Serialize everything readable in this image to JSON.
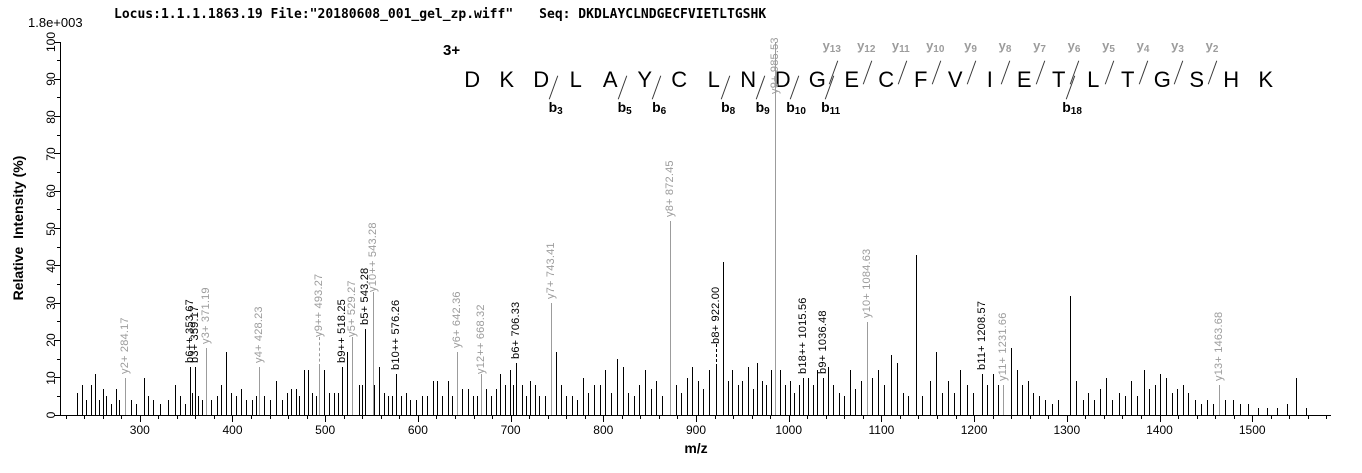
{
  "header": {
    "locus_file": "Locus:1.1.1.1863.19 File:\"20180608_001_gel_zp.wiff\"",
    "seq": "Seq: DKDLAYCLNDGECFVIETLTGSHK",
    "max_intensity": "1.8e+003"
  },
  "sequence": {
    "charge_label": "3+",
    "residues": [
      "D",
      "K",
      "D",
      "L",
      "A",
      "Y",
      "C",
      "L",
      "N",
      "D",
      "G",
      "E",
      "C",
      "F",
      "V",
      "I",
      "E",
      "T",
      "L",
      "T",
      "G",
      "S",
      "H",
      "K"
    ],
    "cuts": [
      {
        "after": 3,
        "b": "b3"
      },
      {
        "after": 5,
        "b": "b5"
      },
      {
        "after": 6,
        "b": "b6"
      },
      {
        "after": 8,
        "b": "b8"
      },
      {
        "after": 9,
        "b": "b9"
      },
      {
        "after": 10,
        "b": "b10"
      },
      {
        "after": 11,
        "b": "b11",
        "y": "y13"
      },
      {
        "after": 12,
        "y": "y12"
      },
      {
        "after": 13,
        "y": "y11"
      },
      {
        "after": 14,
        "y": "y10"
      },
      {
        "after": 15,
        "y": "y9"
      },
      {
        "after": 16,
        "y": "y8"
      },
      {
        "after": 17,
        "y": "y7"
      },
      {
        "after": 18,
        "b": "b18",
        "y": "y6"
      },
      {
        "after": 19,
        "y": "y5"
      },
      {
        "after": 20,
        "y": "y4"
      },
      {
        "after": 21,
        "y": "y3"
      },
      {
        "after": 22,
        "y": "y2"
      }
    ]
  },
  "colors": {
    "y_ion": "#9c9c9c",
    "b_ion": "#000000",
    "axis": "#000000",
    "background": "#ffffff"
  },
  "chart_data": {
    "type": "bar",
    "variant": "centroid MS/MS stick spectrum",
    "title": "",
    "xlabel": "m/z",
    "ylabel": "Relative  Intensity (%)",
    "x_range": [
      215,
      1585
    ],
    "ylim": [
      0,
      100
    ],
    "x_major_ticks": [
      300,
      400,
      500,
      600,
      700,
      800,
      900,
      1000,
      1100,
      1200,
      1300,
      1400,
      1500
    ],
    "x_minor_tick_step": 20,
    "y_major_tick_step": 10,
    "y_minor_tick_step": 5,
    "grid": false,
    "annotated_peaks": [
      {
        "label": "y2+ 284.17",
        "mz": 284.17,
        "intensity": 10,
        "ion": "y",
        "label_y": 11
      },
      {
        "label": "b6++ 353.67",
        "mz": 353.67,
        "intensity": 13,
        "ion": "b",
        "label_y": 14
      },
      {
        "label": "b3+ 359.17",
        "mz": 359.17,
        "intensity": 13,
        "ion": "b",
        "label_y": 14
      },
      {
        "label": "y3+ 371.19",
        "mz": 371.19,
        "intensity": 18,
        "ion": "y",
        "label_y": 19
      },
      {
        "label": "y4+ 428.23",
        "mz": 428.23,
        "intensity": 13,
        "ion": "y",
        "label_y": 14
      },
      {
        "label": "y9++ 493.27",
        "mz": 493.27,
        "intensity": 13,
        "ion": "y",
        "label_y": 21,
        "leader": "dashed"
      },
      {
        "label": "b9++ 518.25",
        "mz": 518.25,
        "intensity": 13,
        "ion": "b",
        "label_y": 14
      },
      {
        "label": "y5+ 529.27",
        "mz": 529.27,
        "intensity": 11,
        "ion": "y",
        "label_y": 21,
        "leader": "solid"
      },
      {
        "label": "b5+ 543.28",
        "mz": 543.28,
        "intensity": 23,
        "ion": "b",
        "label_y": 24
      },
      {
        "label": "y10++ 543.28",
        "mz": 543.28,
        "intensity": 16,
        "ion": "y",
        "label_y": 33,
        "leader": "solid",
        "dx": 8
      },
      {
        "label": "b10++ 576.26",
        "mz": 576.26,
        "intensity": 11,
        "ion": "b",
        "label_y": 12
      },
      {
        "label": "y6+ 642.36",
        "mz": 642.36,
        "intensity": 17,
        "ion": "y",
        "label_y": 18
      },
      {
        "label": "y12++ 668.32",
        "mz": 668.32,
        "intensity": 9,
        "ion": "y",
        "label_y": 11,
        "leader": "solid"
      },
      {
        "label": "b6+ 706.33",
        "mz": 706.33,
        "intensity": 14,
        "ion": "b",
        "label_y": 15
      },
      {
        "label": "y7+ 743.41",
        "mz": 743.41,
        "intensity": 30,
        "ion": "y",
        "label_y": 31
      },
      {
        "label": "y8+ 872.45",
        "mz": 872.45,
        "intensity": 52,
        "ion": "y",
        "label_y": 53
      },
      {
        "label": "b8+ 922.00",
        "mz": 922.0,
        "intensity": 13,
        "ion": "b",
        "label_y": 19,
        "leader": "dashed"
      },
      {
        "label": "y9+ 985.53",
        "mz": 985.53,
        "intensity": 100,
        "ion": "y",
        "label_y": 86
      },
      {
        "label": "b18++ 1015.56",
        "mz": 1015.56,
        "intensity": 10,
        "ion": "b",
        "label_y": 11
      },
      {
        "label": "b9+ 1036.48",
        "mz": 1036.48,
        "intensity": 10,
        "ion": "b",
        "label_y": 11
      },
      {
        "label": "y10+ 1084.63",
        "mz": 1084.63,
        "intensity": 25,
        "ion": "y",
        "label_y": 26
      },
      {
        "label": "b11+ 1208.57",
        "mz": 1208.57,
        "intensity": 11,
        "ion": "b",
        "label_y": 12
      },
      {
        "label": "y11+ 1231.66",
        "mz": 1231.66,
        "intensity": 8,
        "ion": "y",
        "label_y": 9
      },
      {
        "label": "y13+ 1463.68",
        "mz": 1463.68,
        "intensity": 8,
        "ion": "y",
        "label_y": 9
      }
    ],
    "background_peaks": [
      [
        232,
        6
      ],
      [
        238,
        8
      ],
      [
        242,
        4
      ],
      [
        247,
        8
      ],
      [
        252,
        11
      ],
      [
        256,
        4
      ],
      [
        260,
        7
      ],
      [
        264,
        5
      ],
      [
        269,
        3
      ],
      [
        274,
        7
      ],
      [
        278,
        4
      ],
      [
        290,
        4
      ],
      [
        296,
        3
      ],
      [
        304,
        10
      ],
      [
        309,
        5
      ],
      [
        314,
        4
      ],
      [
        322,
        3
      ],
      [
        330,
        4
      ],
      [
        338,
        8
      ],
      [
        343,
        5
      ],
      [
        349,
        3
      ],
      [
        356,
        6
      ],
      [
        363,
        5
      ],
      [
        367,
        4
      ],
      [
        377,
        4
      ],
      [
        383,
        5
      ],
      [
        388,
        8
      ],
      [
        393,
        17
      ],
      [
        398,
        6
      ],
      [
        404,
        5
      ],
      [
        409,
        7
      ],
      [
        415,
        4
      ],
      [
        421,
        4
      ],
      [
        425,
        5
      ],
      [
        434,
        5
      ],
      [
        440,
        4
      ],
      [
        447,
        9
      ],
      [
        453,
        4
      ],
      [
        459,
        6
      ],
      [
        463,
        7
      ],
      [
        468,
        7
      ],
      [
        472,
        5
      ],
      [
        477,
        12
      ],
      [
        481,
        12
      ],
      [
        486,
        6
      ],
      [
        490,
        5
      ],
      [
        499,
        12
      ],
      [
        504,
        6
      ],
      [
        509,
        6
      ],
      [
        514,
        6
      ],
      [
        524,
        17
      ],
      [
        536,
        8
      ],
      [
        540,
        8
      ],
      [
        553,
        8
      ],
      [
        558,
        13
      ],
      [
        563,
        6
      ],
      [
        568,
        5
      ],
      [
        572,
        5
      ],
      [
        582,
        5
      ],
      [
        587,
        6
      ],
      [
        592,
        4
      ],
      [
        598,
        4
      ],
      [
        604,
        5
      ],
      [
        610,
        5
      ],
      [
        616,
        9
      ],
      [
        621,
        9
      ],
      [
        626,
        5
      ],
      [
        632,
        9
      ],
      [
        637,
        5
      ],
      [
        648,
        7
      ],
      [
        654,
        7
      ],
      [
        659,
        5
      ],
      [
        664,
        5
      ],
      [
        674,
        7
      ],
      [
        679,
        5
      ],
      [
        684,
        7
      ],
      [
        689,
        11
      ],
      [
        694,
        8
      ],
      [
        699,
        12
      ],
      [
        703,
        8
      ],
      [
        712,
        8
      ],
      [
        717,
        5
      ],
      [
        721,
        9
      ],
      [
        726,
        8
      ],
      [
        731,
        5
      ],
      [
        737,
        5
      ],
      [
        749,
        17
      ],
      [
        754,
        8
      ],
      [
        760,
        5
      ],
      [
        766,
        5
      ],
      [
        772,
        4
      ],
      [
        778,
        10
      ],
      [
        784,
        6
      ],
      [
        790,
        8
      ],
      [
        796,
        8
      ],
      [
        802,
        12
      ],
      [
        808,
        6
      ],
      [
        815,
        15
      ],
      [
        821,
        13
      ],
      [
        827,
        6
      ],
      [
        833,
        5
      ],
      [
        839,
        8
      ],
      [
        845,
        12
      ],
      [
        851,
        7
      ],
      [
        857,
        9
      ],
      [
        863,
        5
      ],
      [
        878,
        8
      ],
      [
        884,
        6
      ],
      [
        890,
        10
      ],
      [
        896,
        13
      ],
      [
        902,
        9
      ],
      [
        908,
        7
      ],
      [
        914,
        12
      ],
      [
        929,
        41
      ],
      [
        934,
        9
      ],
      [
        939,
        12
      ],
      [
        945,
        8
      ],
      [
        950,
        9
      ],
      [
        956,
        13
      ],
      [
        961,
        7
      ],
      [
        966,
        14
      ],
      [
        971,
        9
      ],
      [
        976,
        8
      ],
      [
        981,
        12
      ],
      [
        991,
        12
      ],
      [
        996,
        8
      ],
      [
        1001,
        9
      ],
      [
        1006,
        6
      ],
      [
        1011,
        8
      ],
      [
        1021,
        10
      ],
      [
        1026,
        8
      ],
      [
        1031,
        12
      ],
      [
        1042,
        13
      ],
      [
        1048,
        8
      ],
      [
        1054,
        6
      ],
      [
        1060,
        5
      ],
      [
        1066,
        12
      ],
      [
        1072,
        7
      ],
      [
        1078,
        9
      ],
      [
        1090,
        10
      ],
      [
        1096,
        12
      ],
      [
        1103,
        8
      ],
      [
        1110,
        16
      ],
      [
        1117,
        14
      ],
      [
        1123,
        6
      ],
      [
        1129,
        5
      ],
      [
        1137,
        43
      ],
      [
        1144,
        5
      ],
      [
        1152,
        9
      ],
      [
        1159,
        17
      ],
      [
        1165,
        6
      ],
      [
        1172,
        9
      ],
      [
        1178,
        6
      ],
      [
        1185,
        12
      ],
      [
        1192,
        8
      ],
      [
        1199,
        6
      ],
      [
        1214,
        8
      ],
      [
        1220,
        11
      ],
      [
        1226,
        8
      ],
      [
        1240,
        18
      ],
      [
        1246,
        12
      ],
      [
        1252,
        8
      ],
      [
        1258,
        9
      ],
      [
        1264,
        6
      ],
      [
        1270,
        5
      ],
      [
        1277,
        4
      ],
      [
        1284,
        3
      ],
      [
        1291,
        4
      ],
      [
        1303,
        32
      ],
      [
        1310,
        9
      ],
      [
        1317,
        4
      ],
      [
        1323,
        6
      ],
      [
        1329,
        4
      ],
      [
        1336,
        7
      ],
      [
        1342,
        10
      ],
      [
        1349,
        4
      ],
      [
        1356,
        6
      ],
      [
        1363,
        5
      ],
      [
        1369,
        9
      ],
      [
        1376,
        5
      ],
      [
        1383,
        12
      ],
      [
        1389,
        7
      ],
      [
        1395,
        8
      ],
      [
        1401,
        11
      ],
      [
        1407,
        10
      ],
      [
        1413,
        6
      ],
      [
        1419,
        7
      ],
      [
        1425,
        8
      ],
      [
        1431,
        6
      ],
      [
        1438,
        4
      ],
      [
        1445,
        3
      ],
      [
        1451,
        4
      ],
      [
        1458,
        3
      ],
      [
        1471,
        4
      ],
      [
        1479,
        4
      ],
      [
        1487,
        3
      ],
      [
        1496,
        3
      ],
      [
        1506,
        2
      ],
      [
        1516,
        2
      ],
      [
        1527,
        2
      ],
      [
        1537,
        3
      ],
      [
        1547,
        10
      ],
      [
        1558,
        2
      ]
    ]
  }
}
